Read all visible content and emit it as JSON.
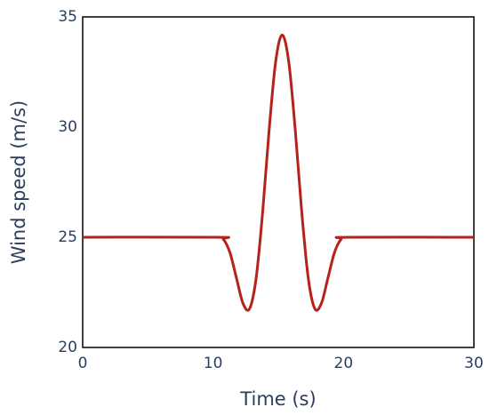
{
  "chart_data": {
    "type": "line",
    "x_label": "Time (s)",
    "y_label": "Wind speed (m/s)",
    "x": [
      0,
      10.3,
      10.8,
      11.3,
      11.8,
      12.3,
      12.8,
      13.3,
      13.8,
      14.3,
      14.8,
      15.3,
      15.8,
      16.3,
      16.8,
      17.3,
      17.8,
      18.3,
      18.8,
      19.3,
      19.8,
      20.3,
      30
    ],
    "series": [
      {
        "color": "#b5221b",
        "values": [
          25,
          25,
          24.9,
          24.29,
          23.13,
          21.99,
          21.76,
          23.14,
          26.14,
          29.88,
          32.97,
          34.18,
          32.97,
          29.88,
          26.14,
          23.14,
          21.76,
          21.99,
          23.13,
          24.29,
          24.9,
          25,
          25
        ]
      }
    ],
    "xlim": [
      0,
      30
    ],
    "xticks": [
      0,
      10,
      20,
      30
    ],
    "ylim": [
      20,
      35
    ],
    "yticks": [
      20,
      25,
      30,
      35
    ],
    "grid": false
  }
}
